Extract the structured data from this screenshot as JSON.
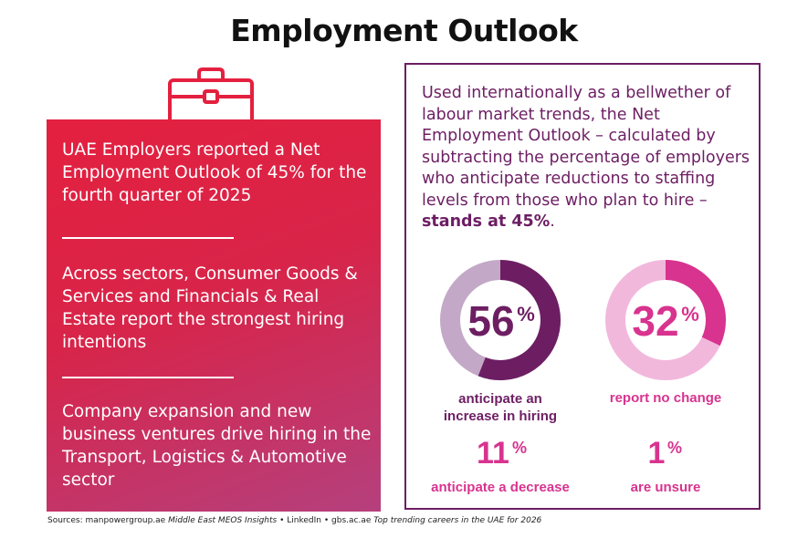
{
  "title": "Employment Outlook",
  "icons": {
    "briefcase": "briefcase-icon"
  },
  "colors": {
    "primary_red": "#e4203f",
    "gradient_end": "#b5407d",
    "purple_dark": "#6d1e63",
    "purple_light": "#c3a8c7",
    "pink": "#d8338f",
    "pink_light": "#f2b8dc"
  },
  "left_panel": {
    "point1": "UAE Employers reported a Net Employment Outlook of 45% for the fourth quarter of 2025",
    "point2": "Across sectors, Consumer Goods & Services and Financials & Real Estate report the strongest hiring intentions",
    "point3": "Company expansion and new business ventures drive hiring in the Transport, Logistics & Automotive sector"
  },
  "right_panel": {
    "intro": "Used internationally as a bellwether of labour market trends, the Net Employment Outlook – calculated by subtracting the percentage of employers who anticipate reductions to staffing levels from those who plan to hire – ",
    "highlight": "stands at 45%",
    "period": "."
  },
  "chart_data": {
    "type": "pie",
    "title": "Employment Outlook",
    "categories": [
      "anticipate an increase in hiring",
      "report no change",
      "anticipate a decrease",
      "are unsure"
    ],
    "values": [
      56,
      32,
      11,
      1
    ],
    "unit": "%",
    "value_labels": [
      "56",
      "32",
      "11",
      "1"
    ],
    "unit_symbol": "%",
    "label_lines": {
      "increase": [
        "anticipate an",
        "increase in hiring"
      ],
      "no_change": "report no change",
      "decrease": "anticipate a decrease",
      "unsure": "are unsure"
    }
  },
  "sources": {
    "prefix": "Sources: manpowergroup.ae ",
    "source1": "Middle East MEOS Insights",
    "mid": " • LinkedIn • gbs.ac.ae ",
    "source2": "Top trending careers in the UAE for 2026"
  }
}
